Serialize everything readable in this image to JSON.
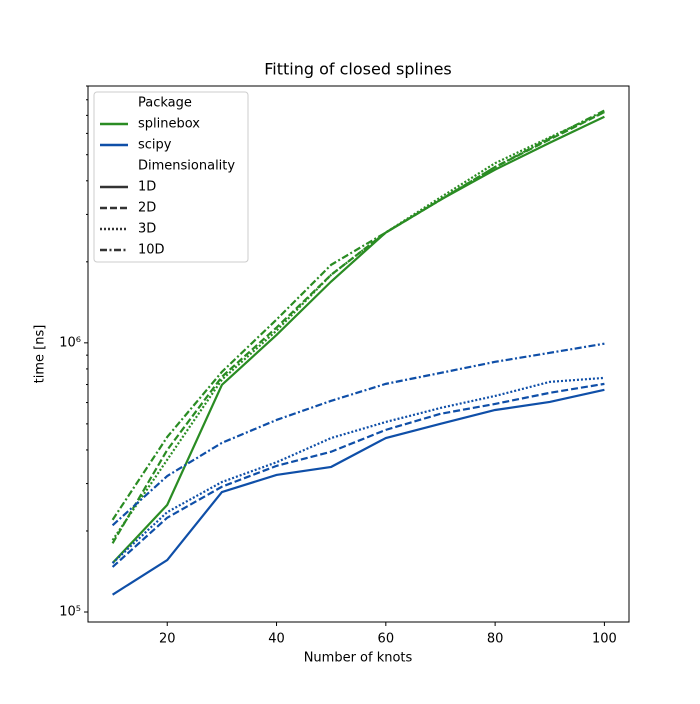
{
  "chart_data": {
    "type": "line",
    "title": "Fitting of closed splines",
    "xlabel": "Number of knots",
    "ylabel": "time [ns]",
    "x": [
      10,
      20,
      30,
      40,
      50,
      60,
      70,
      80,
      90,
      100
    ],
    "xlim": [
      5.5,
      104.5
    ],
    "xticks": [
      20,
      40,
      60,
      80,
      100
    ],
    "ylog": true,
    "ylim": [
      91800,
      9000000
    ],
    "yticks": [
      {
        "value": 100000,
        "label": "10⁵"
      },
      {
        "value": 1000000,
        "label": "10⁶"
      }
    ],
    "yminorticks": [
      200000,
      300000,
      400000,
      500000,
      600000,
      700000,
      800000,
      900000,
      2000000,
      3000000,
      4000000,
      5000000,
      6000000,
      7000000,
      8000000,
      9000000
    ],
    "legend_loc": "upper left",
    "package_title": "Package",
    "packages": [
      {
        "name": "splinebox",
        "color": "#2a8c23"
      },
      {
        "name": "scipy",
        "color": "#0f4fa8"
      }
    ],
    "dimensionality_title": "Dimensionality",
    "dimensionalities": [
      {
        "name": "1D",
        "dash": "solid"
      },
      {
        "name": "2D",
        "dash": "dashed"
      },
      {
        "name": "3D",
        "dash": "dotted"
      },
      {
        "name": "10D",
        "dash": "dashdot"
      }
    ],
    "values": [
      [
        [
          152000,
          250000,
          698000,
          1070000,
          1690000,
          2570000,
          3400000,
          4400000,
          5540000,
          6920000
        ],
        [
          180000,
          400000,
          748000,
          1140000,
          1790000,
          2570000,
          3400000,
          4500000,
          5700000,
          7200000
        ],
        [
          185000,
          368000,
          730000,
          1110000,
          1790000,
          2570000,
          3470000,
          4650000,
          5800000,
          7200000
        ],
        [
          220000,
          447000,
          780000,
          1220000,
          1950000,
          2570000,
          3400000,
          4500000,
          5750000,
          7300000
        ]
      ],
      [
        [
          116000,
          156000,
          279000,
          323000,
          346000,
          443000,
          500000,
          563000,
          603000,
          669000
        ],
        [
          147000,
          224000,
          292000,
          349000,
          394000,
          475000,
          545000,
          593000,
          652000,
          704000
        ],
        [
          152000,
          235000,
          304000,
          360000,
          443000,
          508000,
          573000,
          635000,
          716000,
          741000
        ],
        [
          210000,
          320000,
          425000,
          517000,
          609000,
          704000,
          773000,
          850000,
          918000,
          993000
        ]
      ]
    ]
  }
}
